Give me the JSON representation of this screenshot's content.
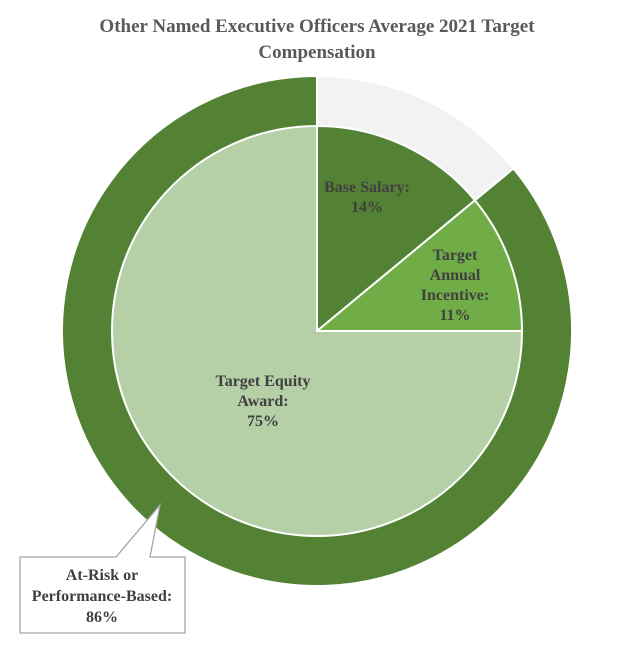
{
  "chart_data": {
    "type": "pie",
    "title_lines": [
      "Other Named Executive Officers Average 2021 Target",
      "Compensation"
    ],
    "inner": {
      "slices": [
        {
          "label_lines": [
            "Base Salary:",
            "14%"
          ],
          "value": 14,
          "color": "#548235"
        },
        {
          "label_lines": [
            "Target",
            "Annual",
            "Incentive:",
            "11%"
          ],
          "value": 11,
          "color": "#70AD47"
        },
        {
          "label_lines": [
            "Target Equity",
            "Award:",
            "75%"
          ],
          "value": 75,
          "color": "#B5CFA6"
        }
      ]
    },
    "outer": {
      "slices": [
        {
          "value": 14,
          "color": "#F2F2F2"
        },
        {
          "label_lines": [
            "At-Risk or",
            "Performance-Based:",
            "86%"
          ],
          "value": 86,
          "color": "#548235"
        }
      ]
    }
  }
}
